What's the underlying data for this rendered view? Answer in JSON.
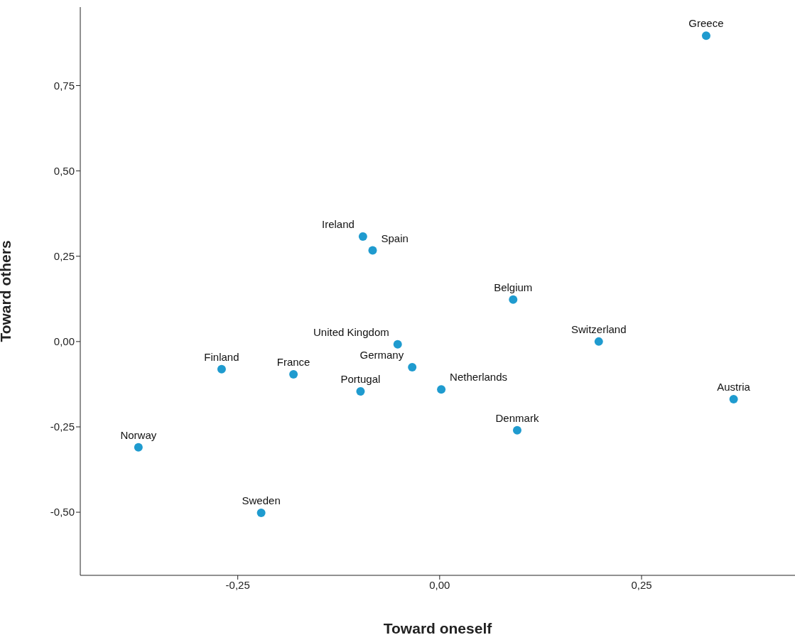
{
  "chart_data": {
    "type": "scatter",
    "xlabel": "Toward oneself",
    "ylabel": "Toward others",
    "xlim": [
      -0.445,
      0.44
    ],
    "ylim": [
      -0.685,
      0.98
    ],
    "xticks": [
      {
        "value": -0.25,
        "label": "-0,25"
      },
      {
        "value": 0,
        "label": "0,00"
      },
      {
        "value": 0.25,
        "label": "0,25"
      }
    ],
    "yticks": [
      {
        "value": -0.5,
        "label": "-0,50"
      },
      {
        "value": -0.25,
        "label": "-0,25"
      },
      {
        "value": 0,
        "label": "0,00"
      },
      {
        "value": 0.25,
        "label": "0,25"
      },
      {
        "value": 0.5,
        "label": "0,50"
      },
      {
        "value": 0.75,
        "label": "0,75"
      }
    ],
    "marker": "circle",
    "series": [
      {
        "color": "#1f9bcf",
        "x": [
          0.33,
          -0.095,
          -0.083,
          0.091,
          -0.052,
          0.197,
          -0.034,
          -0.27,
          -0.181,
          -0.098,
          0.002,
          0.364,
          0.096,
          -0.373,
          -0.221
        ],
        "values": [
          0.896,
          0.308,
          0.267,
          0.123,
          -0.008,
          0.0,
          -0.075,
          -0.081,
          -0.096,
          -0.146,
          -0.14,
          -0.169,
          -0.26,
          -0.31,
          -0.502
        ]
      }
    ],
    "annotations": [
      {
        "text": "Greece",
        "x": 0.33,
        "y": 0.896
      },
      {
        "text": "Ireland",
        "x": -0.095,
        "y": 0.308
      },
      {
        "text": "Spain",
        "x": -0.083,
        "y": 0.267
      },
      {
        "text": "Belgium",
        "x": 0.091,
        "y": 0.123
      },
      {
        "text": "United Kingdom",
        "x": -0.052,
        "y": -0.008
      },
      {
        "text": "Switzerland",
        "x": 0.197,
        "y": 0.0
      },
      {
        "text": "Germany",
        "x": -0.034,
        "y": -0.075
      },
      {
        "text": "Finland",
        "x": -0.27,
        "y": -0.081
      },
      {
        "text": "France",
        "x": -0.181,
        "y": -0.096
      },
      {
        "text": "Portugal",
        "x": -0.098,
        "y": -0.146
      },
      {
        "text": "Netherlands",
        "x": 0.002,
        "y": -0.14
      },
      {
        "text": "Austria",
        "x": 0.364,
        "y": -0.169
      },
      {
        "text": "Denmark",
        "x": 0.096,
        "y": -0.26
      },
      {
        "text": "Norway",
        "x": -0.373,
        "y": -0.31
      },
      {
        "text": "Sweden",
        "x": -0.221,
        "y": -0.502
      }
    ]
  }
}
